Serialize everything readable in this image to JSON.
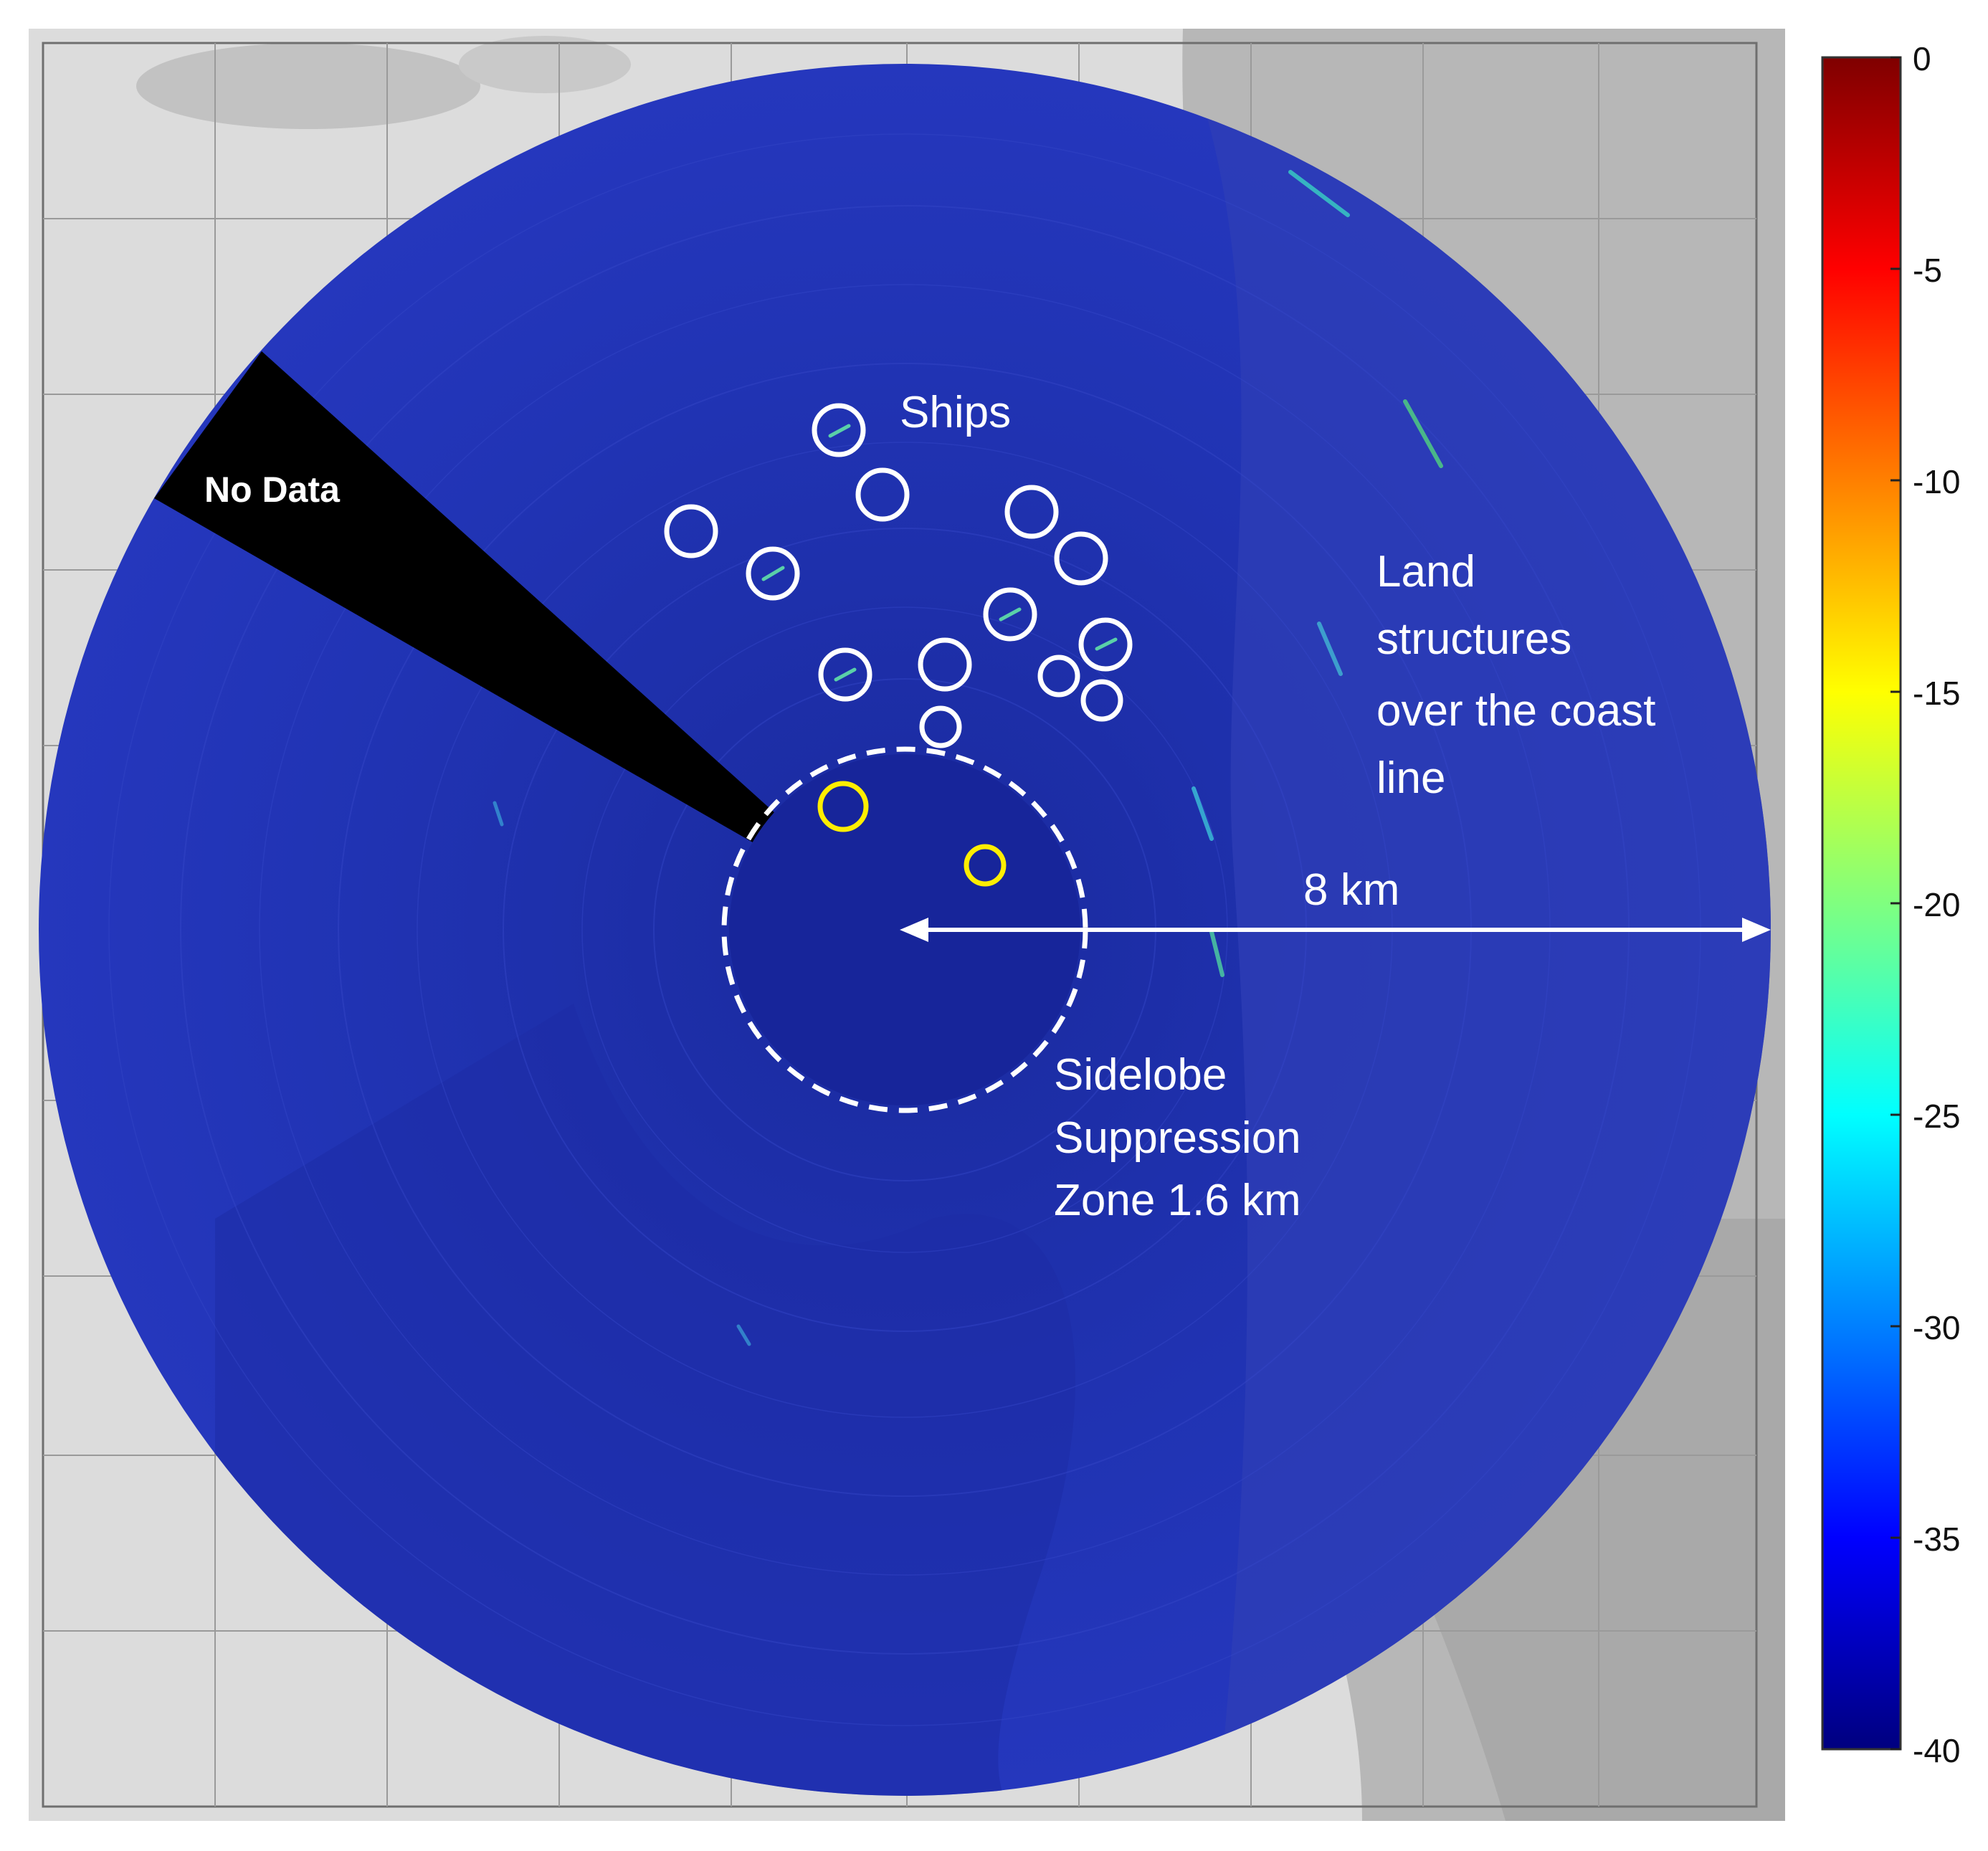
{
  "annotations": {
    "no_data": "No Data",
    "ships": "Ships",
    "land_lines": [
      "Land",
      "structures",
      "over the coast",
      "line"
    ],
    "range": "8 km",
    "sidelobe_lines": [
      "Sidelobe",
      "Suppression",
      "Zone 1.6 km"
    ]
  },
  "colorbar": {
    "ticks": [
      "0",
      "-5",
      "-10",
      "-15",
      "-20",
      "-25",
      "-30",
      "-35",
      "-40"
    ],
    "colormap": "jet",
    "min": -40,
    "max": 0
  },
  "colors": {
    "ship_marker": "#ffffff",
    "highlight_marker": "#ffee00",
    "radar_background": "#1b2fb0",
    "no_data_sector": "#000000"
  },
  "markers": {
    "ships_count": 14,
    "highlighted_count": 2
  }
}
